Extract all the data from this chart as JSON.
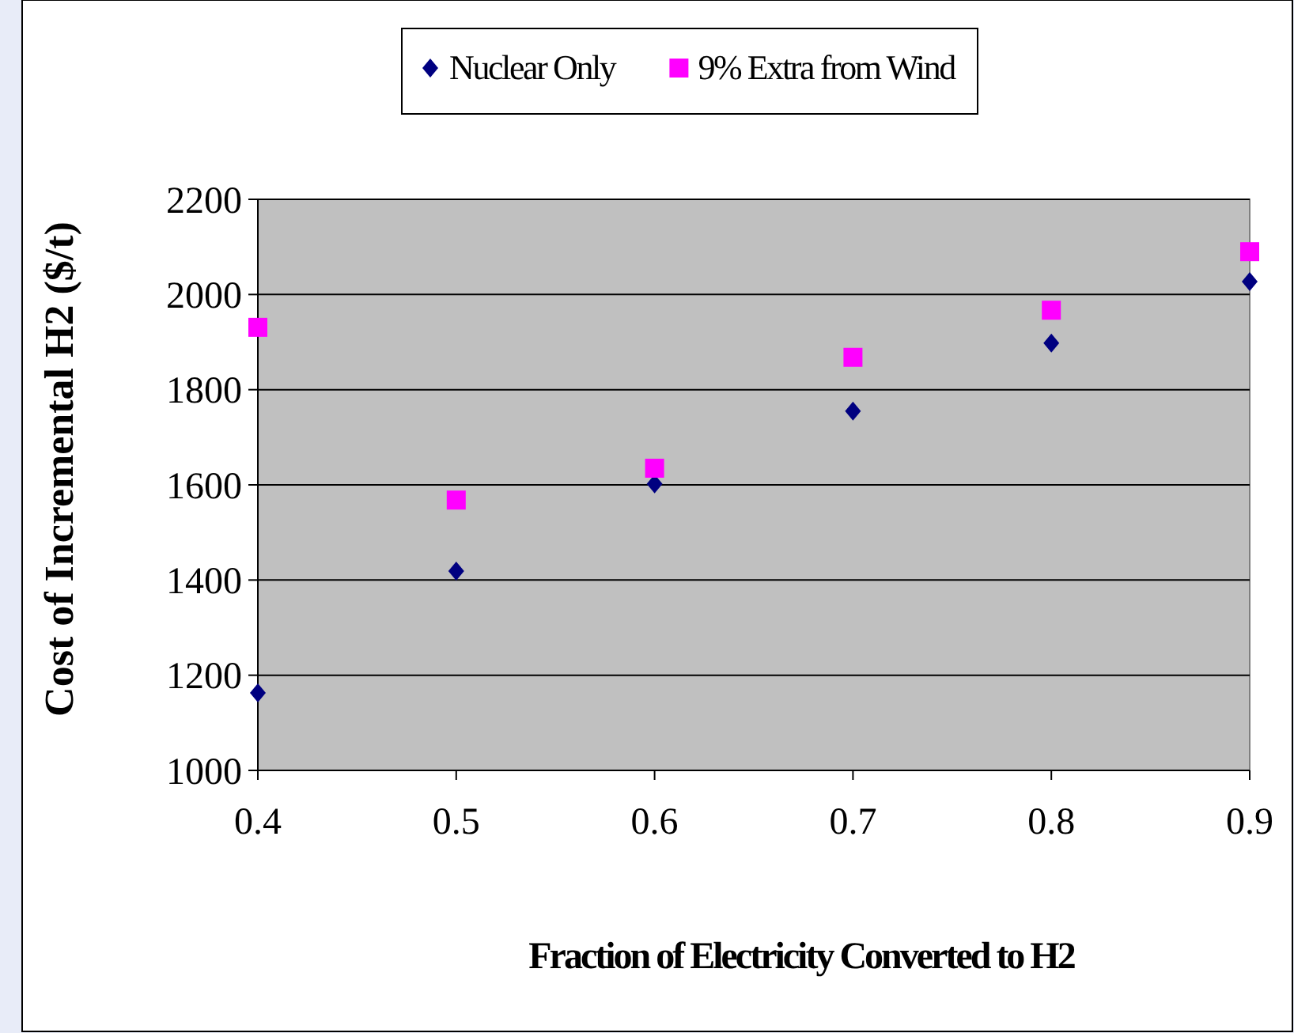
{
  "chart_data": {
    "type": "scatter",
    "xlabel": "Fraction of Electricity Converted to H2",
    "ylabel": "Cost of Incremental H2 ($/t)",
    "x": [
      0.4,
      0.5,
      0.6,
      0.7,
      0.8,
      0.9
    ],
    "series": [
      {
        "name": "Nuclear Only",
        "color": "#000080",
        "marker": "diamond",
        "values": [
          1163,
          1419,
          1602,
          1755,
          1898,
          2027
        ]
      },
      {
        "name": "9% Extra from Wind",
        "color": "#ff00ff",
        "marker": "square",
        "values": [
          1931,
          1568,
          1635,
          1868,
          1967,
          2090
        ]
      }
    ],
    "xlim": [
      0.4,
      0.9
    ],
    "xticks": [
      0.4,
      0.5,
      0.6,
      0.7,
      0.8,
      0.9
    ],
    "ylim": [
      1000,
      2200
    ],
    "yticks": [
      1000,
      1200,
      1400,
      1600,
      1800,
      2000,
      2200
    ],
    "grid": "y",
    "legend": "top"
  }
}
